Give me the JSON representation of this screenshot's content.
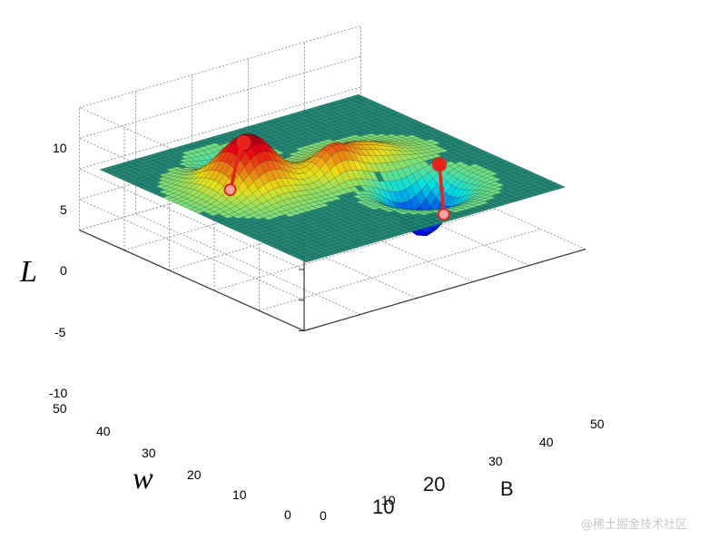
{
  "chart_data": {
    "type": "surface",
    "zlabel": "L",
    "ylabel": "w",
    "xlabel": "B",
    "zlim": [
      -10,
      10
    ],
    "zticks": [
      "10",
      "5",
      "0",
      "-5",
      "-10"
    ],
    "yticks": [
      "50",
      "40",
      "30",
      "20",
      "10",
      "0"
    ],
    "xticks_small": [
      "0",
      "10",
      "30",
      "40",
      "50"
    ],
    "xticks_big": [
      "10",
      "20"
    ],
    "grid": true,
    "colormap": "jet",
    "surface": {
      "grid_x": [
        1,
        49
      ],
      "grid_y": [
        1,
        49
      ],
      "resolution": 49,
      "description_peaks": [
        {
          "x": 14,
          "y": 30,
          "z": 8.5
        },
        {
          "x": 25,
          "y": 25,
          "z": 3.5
        },
        {
          "x": 33,
          "y": 15,
          "z": -8
        }
      ]
    },
    "paths": [
      {
        "points": [
          [
            14,
            31,
            6.8
          ],
          [
            15,
            33,
            4.5
          ],
          [
            16,
            35,
            2.0
          ],
          [
            17,
            37,
            -1.5
          ],
          [
            18,
            39,
            -4.6
          ]
        ],
        "color": "#e8231b"
      },
      {
        "points": [
          [
            40,
            20,
            -0.1
          ],
          [
            38,
            17,
            -2.5
          ],
          [
            36,
            14,
            -5.2
          ]
        ],
        "color": "#e8231b"
      }
    ]
  },
  "watermark": "@稀土掘金技术社区",
  "colors": {
    "grid": "#9a9a9a",
    "axis": "#333333",
    "path": "#e8231b",
    "flat": "#1f8a78"
  }
}
